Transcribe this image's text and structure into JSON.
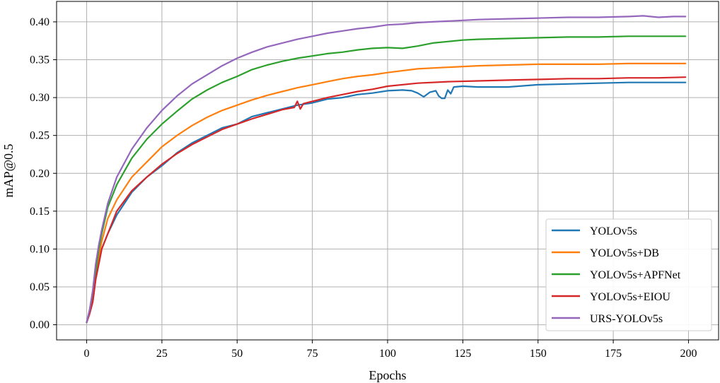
{
  "chart_data": {
    "type": "line",
    "title": "",
    "xlabel": "Epochs",
    "ylabel": "mAP@0.5",
    "xlim": [
      -10,
      210
    ],
    "ylim": [
      -0.02,
      0.427
    ],
    "xticks": [
      0,
      25,
      50,
      75,
      100,
      125,
      150,
      175,
      200
    ],
    "xtick_labels": [
      "0",
      "25",
      "50",
      "75",
      "100",
      "125",
      "150",
      "175",
      "200"
    ],
    "yticks": [
      0.0,
      0.05,
      0.1,
      0.15,
      0.2,
      0.25,
      0.3,
      0.35,
      0.4
    ],
    "ytick_labels": [
      "0.00",
      "0.05",
      "0.10",
      "0.15",
      "0.20",
      "0.25",
      "0.30",
      "0.35",
      "0.40"
    ],
    "grid": true,
    "legend_position": "lower-right",
    "series": [
      {
        "name": "YOLOv5s",
        "color": "#1f77b4",
        "x": [
          0,
          1,
          2,
          3,
          4,
          5,
          7,
          10,
          15,
          20,
          25,
          30,
          35,
          40,
          45,
          50,
          55,
          60,
          65,
          70,
          75,
          80,
          85,
          90,
          95,
          100,
          105,
          108,
          110,
          112,
          114,
          116,
          117,
          118,
          119,
          120,
          121,
          122,
          125,
          130,
          140,
          150,
          160,
          170,
          180,
          190,
          199
        ],
        "y": [
          0.003,
          0.015,
          0.03,
          0.06,
          0.08,
          0.1,
          0.12,
          0.145,
          0.175,
          0.195,
          0.21,
          0.227,
          0.24,
          0.25,
          0.26,
          0.265,
          0.275,
          0.28,
          0.285,
          0.29,
          0.293,
          0.298,
          0.3,
          0.304,
          0.306,
          0.309,
          0.31,
          0.309,
          0.306,
          0.301,
          0.307,
          0.309,
          0.302,
          0.299,
          0.299,
          0.31,
          0.305,
          0.314,
          0.315,
          0.314,
          0.314,
          0.317,
          0.318,
          0.319,
          0.32,
          0.32,
          0.32
        ]
      },
      {
        "name": "YOLOv5s+DB",
        "color": "#ff7f0e",
        "x": [
          0,
          1,
          2,
          3,
          4,
          5,
          7,
          10,
          15,
          20,
          25,
          30,
          35,
          40,
          45,
          50,
          55,
          60,
          65,
          70,
          75,
          80,
          85,
          90,
          95,
          100,
          110,
          120,
          130,
          140,
          150,
          160,
          170,
          180,
          190,
          199
        ],
        "y": [
          0.003,
          0.018,
          0.035,
          0.065,
          0.09,
          0.11,
          0.14,
          0.165,
          0.195,
          0.215,
          0.235,
          0.25,
          0.263,
          0.274,
          0.283,
          0.29,
          0.297,
          0.303,
          0.308,
          0.313,
          0.317,
          0.321,
          0.325,
          0.328,
          0.33,
          0.333,
          0.338,
          0.34,
          0.342,
          0.343,
          0.344,
          0.344,
          0.344,
          0.345,
          0.345,
          0.345
        ]
      },
      {
        "name": "YOLOv5s+APFNet",
        "color": "#2ca02c",
        "x": [
          0,
          1,
          2,
          3,
          4,
          5,
          7,
          10,
          15,
          20,
          25,
          30,
          35,
          40,
          45,
          50,
          55,
          60,
          65,
          70,
          75,
          80,
          85,
          90,
          95,
          100,
          105,
          110,
          115,
          120,
          125,
          130,
          140,
          150,
          160,
          170,
          180,
          190,
          199
        ],
        "y": [
          0.003,
          0.02,
          0.04,
          0.07,
          0.1,
          0.12,
          0.155,
          0.185,
          0.22,
          0.245,
          0.265,
          0.282,
          0.298,
          0.31,
          0.32,
          0.328,
          0.337,
          0.343,
          0.348,
          0.352,
          0.355,
          0.358,
          0.36,
          0.363,
          0.365,
          0.366,
          0.365,
          0.368,
          0.372,
          0.374,
          0.376,
          0.377,
          0.378,
          0.379,
          0.38,
          0.38,
          0.381,
          0.381,
          0.381
        ]
      },
      {
        "name": "YOLOv5s+EIOU",
        "color": "#d62728",
        "x": [
          0,
          1,
          2,
          3,
          4,
          5,
          7,
          10,
          15,
          20,
          25,
          30,
          35,
          40,
          45,
          50,
          55,
          60,
          65,
          69,
          70,
          71,
          72,
          75,
          80,
          85,
          90,
          95,
          100,
          110,
          120,
          130,
          140,
          150,
          160,
          170,
          180,
          190,
          199
        ],
        "y": [
          0.003,
          0.015,
          0.03,
          0.06,
          0.08,
          0.1,
          0.12,
          0.15,
          0.177,
          0.195,
          0.212,
          0.226,
          0.238,
          0.248,
          0.258,
          0.265,
          0.272,
          0.278,
          0.284,
          0.287,
          0.295,
          0.285,
          0.292,
          0.295,
          0.3,
          0.304,
          0.308,
          0.311,
          0.315,
          0.319,
          0.321,
          0.322,
          0.323,
          0.324,
          0.325,
          0.325,
          0.326,
          0.326,
          0.327
        ]
      },
      {
        "name": "URS-YOLOv5s",
        "color": "#9467bd",
        "x": [
          0,
          1,
          2,
          3,
          4,
          5,
          7,
          10,
          15,
          20,
          25,
          30,
          35,
          40,
          45,
          50,
          55,
          60,
          65,
          70,
          75,
          80,
          85,
          90,
          95,
          100,
          105,
          110,
          115,
          120,
          125,
          130,
          140,
          150,
          160,
          170,
          180,
          185,
          190,
          195,
          199
        ],
        "y": [
          0.003,
          0.02,
          0.045,
          0.08,
          0.105,
          0.125,
          0.16,
          0.195,
          0.232,
          0.26,
          0.283,
          0.302,
          0.318,
          0.33,
          0.342,
          0.352,
          0.36,
          0.367,
          0.372,
          0.377,
          0.381,
          0.385,
          0.388,
          0.391,
          0.393,
          0.396,
          0.397,
          0.399,
          0.4,
          0.401,
          0.402,
          0.403,
          0.404,
          0.405,
          0.406,
          0.406,
          0.407,
          0.408,
          0.406,
          0.407,
          0.407
        ]
      }
    ]
  }
}
